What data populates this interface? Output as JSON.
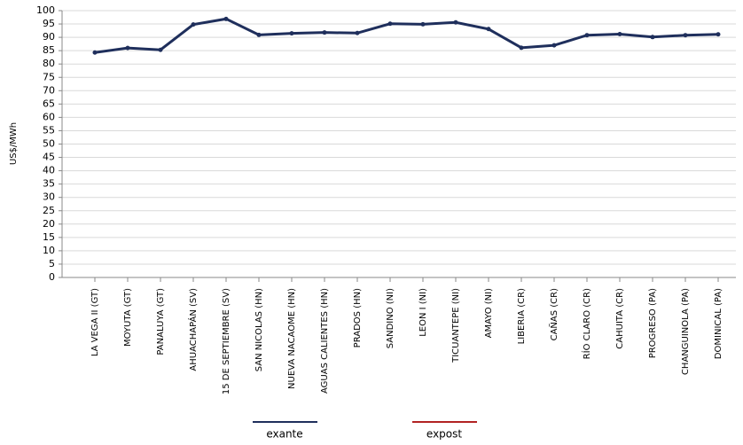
{
  "chart_data": {
    "type": "line",
    "y_label": "US$/MWh",
    "categories": [
      "LA VEGA II (GT)",
      "MOYUTA (GT)",
      "PANALUYA (GT)",
      "AHUACHAPÁN (SV)",
      "15 DE SEPTIEMBRE (SV)",
      "SAN NICOLAS (HN)",
      "NUEVA NACAOME (HN)",
      "AGUAS CALIENTES (HN)",
      "PRADOS (HN)",
      "SANDINO (NI)",
      "LEON I (NI)",
      "TICUANTEPE (NI)",
      "AMAYO (NI)",
      "LIBERIA (CR)",
      "CAÑAS (CR)",
      "RÍO CLARO (CR)",
      "CAHUITA (CR)",
      "PROGRESO (PA)",
      "CHANGUINOLA (PA)",
      "DOMINICAL (PA)"
    ],
    "series": [
      {
        "name": "exante",
        "color": "#1f2f5c",
        "values": [
          84.3,
          86,
          85.3,
          94.8,
          96.9,
          90.9,
          91.5,
          91.8,
          91.6,
          95.1,
          94.9,
          95.6,
          93.1,
          86.1,
          87,
          90.8,
          91.2,
          90.1,
          90.8,
          91.1
        ]
      },
      {
        "name": "expost",
        "color": "#b22222",
        "values": [
          null,
          null,
          null,
          null,
          null,
          null,
          null,
          null,
          null,
          null,
          null,
          null,
          null,
          null,
          null,
          null,
          null,
          null,
          null,
          null
        ]
      }
    ],
    "ylim": [
      0,
      100
    ],
    "yticks": [
      0,
      5,
      10,
      15,
      20,
      25,
      30,
      35,
      40,
      45,
      50,
      55,
      60,
      65,
      70,
      75,
      80,
      85,
      90,
      95,
      100
    ],
    "grid": true
  }
}
